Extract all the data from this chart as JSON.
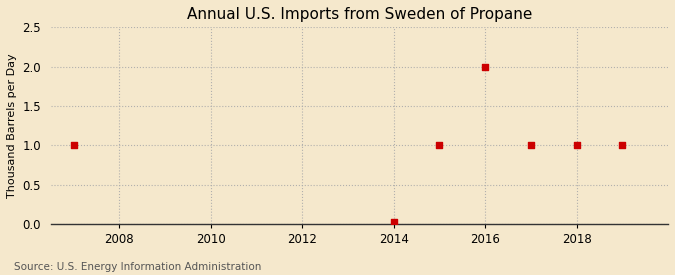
{
  "title": "Annual U.S. Imports from Sweden of Propane",
  "ylabel": "Thousand Barrels per Day",
  "source": "Source: U.S. Energy Information Administration",
  "background_color": "#f5e8cc",
  "plot_background_color": "#f5e8cc",
  "xlim": [
    2006.5,
    2020
  ],
  "ylim": [
    0,
    2.5
  ],
  "yticks": [
    0.0,
    0.5,
    1.0,
    1.5,
    2.0,
    2.5
  ],
  "xticks": [
    2008,
    2010,
    2012,
    2014,
    2016,
    2018
  ],
  "data_x": [
    2007,
    2014,
    2015,
    2016,
    2017,
    2018,
    2019
  ],
  "data_y": [
    1.0,
    0.02,
    1.0,
    2.0,
    1.0,
    1.0,
    1.0
  ],
  "marker_color": "#cc0000",
  "marker_size": 4,
  "grid_color": "#aaaaaa",
  "title_fontsize": 11,
  "label_fontsize": 8,
  "tick_fontsize": 8.5,
  "source_fontsize": 7.5
}
